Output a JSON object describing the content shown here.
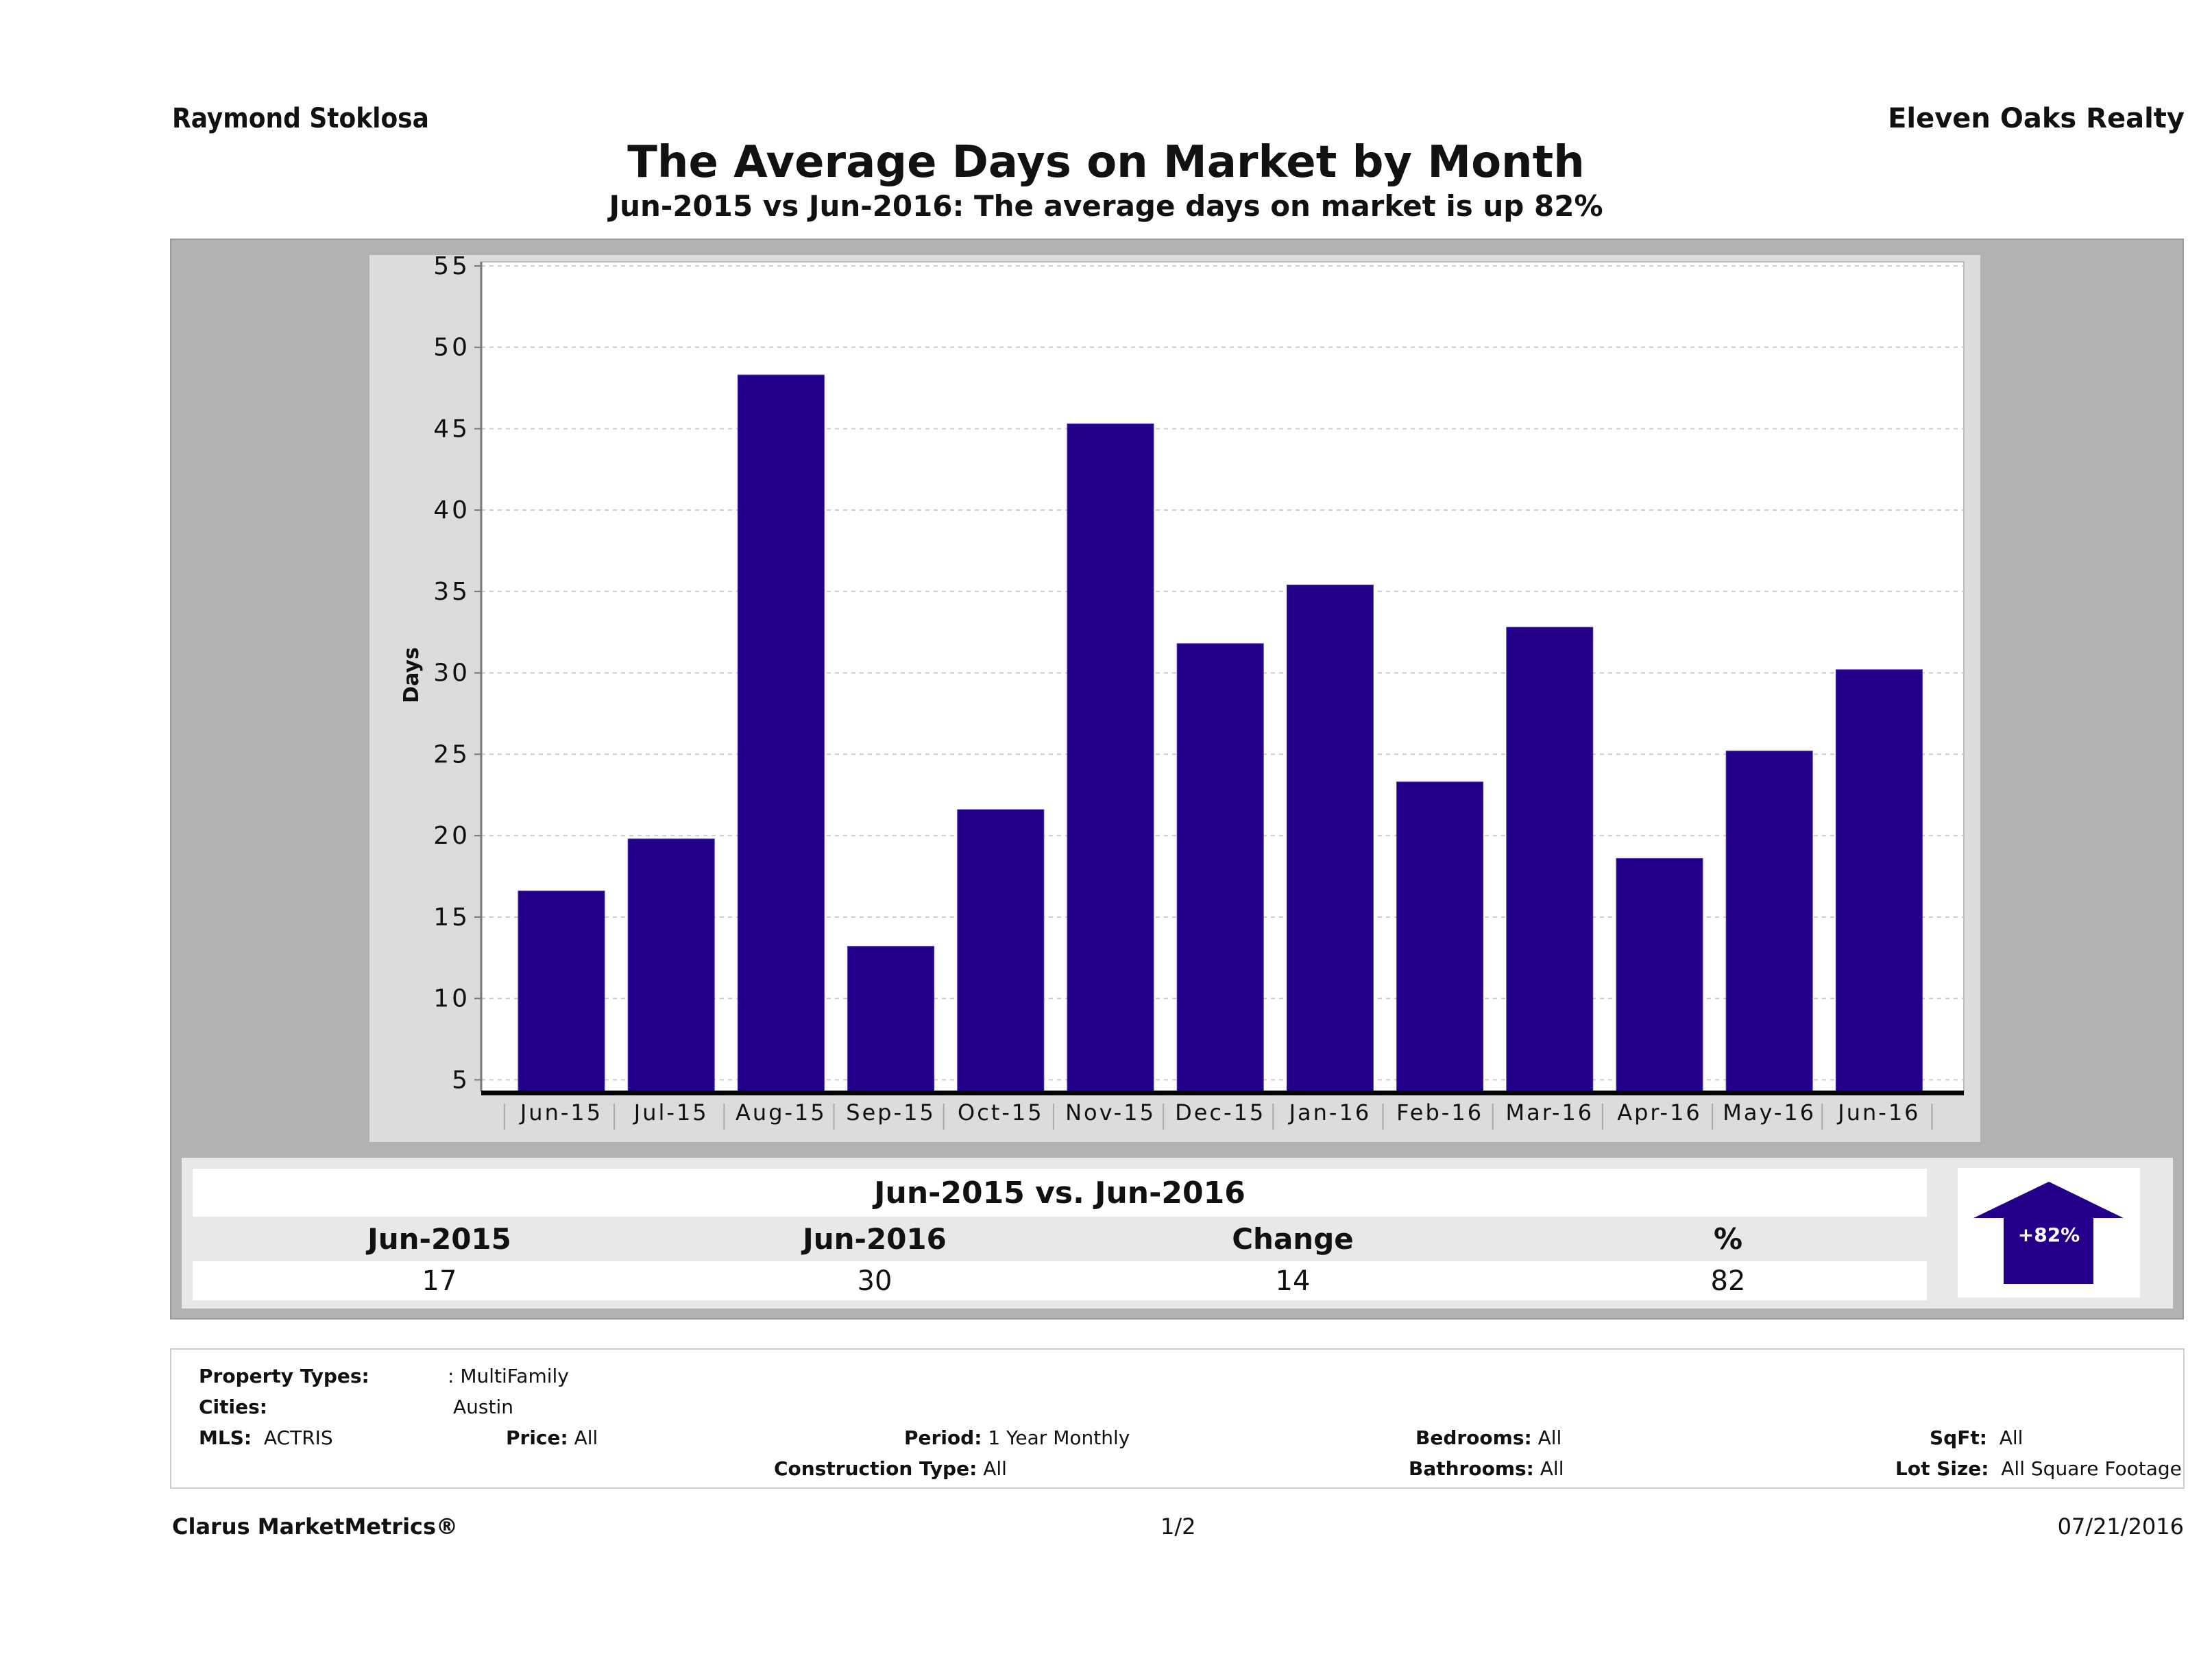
{
  "header": {
    "agent_name": "Raymond Stoklosa",
    "company_name": "Eleven Oaks Realty",
    "title": "The Average Days on Market by Month",
    "subtitle": "Jun-2015 vs Jun-2016: The average days on market is up 82%"
  },
  "chart_data": {
    "type": "bar",
    "title": "The Average Days on Market by Month",
    "xlabel": "",
    "ylabel": "Days",
    "categories": [
      "Jun-15",
      "Jul-15",
      "Aug-15",
      "Sep-15",
      "Oct-15",
      "Nov-15",
      "Dec-15",
      "Jan-16",
      "Feb-16",
      "Mar-16",
      "Apr-16",
      "May-16",
      "Jun-16"
    ],
    "values": [
      16.6,
      19.8,
      48.3,
      13.2,
      21.6,
      45.3,
      31.8,
      35.4,
      23.3,
      32.8,
      18.6,
      25.2,
      30.2
    ],
    "ylim": [
      4.3,
      55.25
    ],
    "yticks": [
      5,
      10,
      15,
      20,
      25,
      30,
      35,
      40,
      45,
      50,
      55
    ],
    "grid": true,
    "legend": "none",
    "bar_color": "#24008a"
  },
  "summary": {
    "title": "Jun-2015 vs. Jun-2016",
    "headers": [
      "Jun-2015",
      "Jun-2016",
      "Change",
      "%"
    ],
    "values": [
      "17",
      "30",
      "14",
      "82"
    ],
    "badge": {
      "icon": "up-arrow-icon",
      "label": "+82%",
      "color": "#24008a"
    }
  },
  "filters": {
    "property_types_label": "Property Types:",
    "property_types_value": ": MultiFamily",
    "cities_label": "Cities:",
    "cities_value": "Austin",
    "mls_label": "MLS:",
    "mls_value": "ACTRIS",
    "price_label": "Price:",
    "price_value": "All",
    "period_label": "Period:",
    "period_value": "1 Year Monthly",
    "construction_label": "Construction Type:",
    "construction_value": "All",
    "bedrooms_label": "Bedrooms:",
    "bedrooms_value": "All",
    "bathrooms_label": "Bathrooms:",
    "bathrooms_value": "All",
    "sqft_label": "SqFt:",
    "sqft_value": "All",
    "lot_size_label": "Lot Size:",
    "lot_size_value": "All Square Footage"
  },
  "footer": {
    "brand": "Clarus MarketMetrics®",
    "page": "1/2",
    "date": "07/21/2016"
  }
}
